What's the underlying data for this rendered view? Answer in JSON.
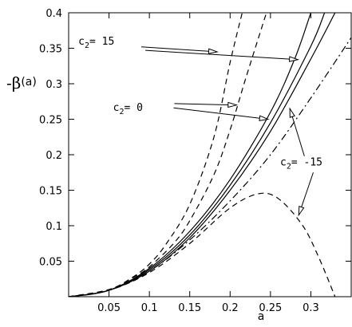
{
  "chart_data": {
    "type": "line",
    "xlabel": "a",
    "ylabel_symbol": "-β",
    "ylabel_arg": "(a)",
    "xlim": [
      0,
      0.35
    ],
    "ylim": [
      0,
      0.4
    ],
    "x_ticks": [
      0.05,
      0.1,
      0.15,
      0.2,
      0.25,
      0.3
    ],
    "x_tick_labels": [
      "0.05",
      "0.1",
      "0.15",
      "0.2",
      "0.25",
      "0.3"
    ],
    "y_ticks": [
      0.05,
      0.1,
      0.15,
      0.2,
      0.25,
      0.3,
      0.35,
      0.4
    ],
    "y_tick_labels": [
      "0.05",
      "0.1",
      "0.15",
      "0.2",
      "0.25",
      "0.3",
      "0.35",
      "0.4"
    ],
    "grid": false,
    "series": [
      {
        "style": "dashed",
        "x": [
          0,
          0.05,
          0.08,
          0.1,
          0.12,
          0.15,
          0.18,
          0.2,
          0.215
        ],
        "y": [
          0,
          0.01,
          0.028,
          0.046,
          0.073,
          0.13,
          0.225,
          0.33,
          0.4
        ]
      },
      {
        "style": "dashed",
        "x": [
          0,
          0.05,
          0.08,
          0.1,
          0.13,
          0.15,
          0.18,
          0.2,
          0.22,
          0.245
        ],
        "y": [
          0,
          0.01,
          0.027,
          0.042,
          0.075,
          0.107,
          0.172,
          0.235,
          0.31,
          0.4
        ]
      },
      {
        "style": "solid",
        "x": [
          0,
          0.05,
          0.1,
          0.15,
          0.2,
          0.25,
          0.28,
          0.3
        ],
        "y": [
          0,
          0.009,
          0.04,
          0.092,
          0.165,
          0.26,
          0.335,
          0.4
        ]
      },
      {
        "style": "solid",
        "x": [
          0,
          0.05,
          0.1,
          0.15,
          0.2,
          0.25,
          0.3,
          0.317
        ],
        "y": [
          0,
          0.009,
          0.038,
          0.087,
          0.157,
          0.245,
          0.353,
          0.4
        ]
      },
      {
        "style": "solid",
        "x": [
          0,
          0.05,
          0.1,
          0.15,
          0.2,
          0.25,
          0.3,
          0.33
        ],
        "y": [
          0,
          0.009,
          0.036,
          0.083,
          0.15,
          0.233,
          0.335,
          0.4
        ]
      },
      {
        "style": "dashdot",
        "x": [
          0,
          0.05,
          0.1,
          0.15,
          0.2,
          0.25,
          0.3,
          0.35
        ],
        "y": [
          0,
          0.009,
          0.036,
          0.08,
          0.135,
          0.2,
          0.28,
          0.365
        ]
      },
      {
        "style": "dashed",
        "x": [
          0,
          0.05,
          0.1,
          0.15,
          0.2,
          0.235,
          0.26,
          0.29,
          0.31,
          0.33
        ],
        "y": [
          0,
          0.009,
          0.034,
          0.075,
          0.125,
          0.145,
          0.138,
          0.1,
          0.055,
          0.0
        ]
      }
    ],
    "annotations": [
      {
        "text": "c",
        "sub": "2",
        "rest": "= 15",
        "x": 0.012,
        "y": 0.355,
        "arrows": [
          {
            "from": [
              0.09,
              0.352
            ],
            "to": [
              0.184,
              0.345
            ]
          },
          {
            "from": [
              0.095,
              0.347
            ],
            "to": [
              0.284,
              0.334
            ]
          }
        ]
      },
      {
        "text": "c",
        "sub": "2",
        "rest": "= 0",
        "x": 0.055,
        "y": 0.262,
        "arrows": [
          {
            "from": [
              0.131,
              0.272
            ],
            "to": [
              0.208,
              0.27
            ]
          },
          {
            "from": [
              0.13,
              0.266
            ],
            "to": [
              0.247,
              0.25
            ]
          }
        ]
      },
      {
        "text": "c",
        "sub": "2",
        "rest": "= -15",
        "x": 0.262,
        "y": 0.185,
        "arrows": [
          {
            "from": [
              0.292,
              0.198
            ],
            "to": [
              0.274,
              0.265
            ]
          },
          {
            "from": [
              0.303,
              0.175
            ],
            "to": [
              0.285,
              0.115
            ]
          }
        ]
      }
    ]
  }
}
